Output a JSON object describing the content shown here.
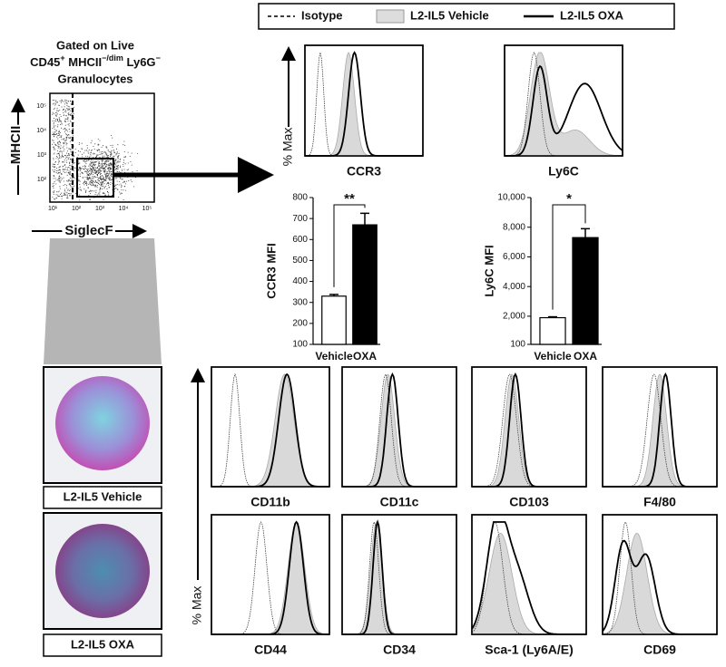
{
  "legend": [
    "Isotype",
    "L2-IL5 Vehicle",
    "L2-IL5 OXA"
  ],
  "gating": {
    "title_line1": "Gated on Live",
    "title_line2": [
      "CD45",
      "+",
      " MHCII",
      "−/dim",
      " Ly6G",
      "−"
    ],
    "title_line3": "Granulocytes",
    "y_label": "MHCII",
    "x_label": "SiglecF",
    "x_tick_labels": [
      "10¹",
      "10²",
      "10³",
      "10⁴",
      "10⁵"
    ],
    "y_tick_labels": [
      "10²",
      "10³",
      "10⁴",
      "10⁵"
    ]
  },
  "histogram_y_label": "% Max",
  "histogram_labels": [
    "CCR3",
    "Ly6C",
    "CD11b",
    "CD11c",
    "CD103",
    "F4/80",
    "CD44",
    "CD34",
    "Sca-1 (Ly6A/E)",
    "CD69"
  ],
  "image_captions": [
    "L2-IL5 Vehicle",
    "L2-IL5 OXA"
  ],
  "chart_data": [
    {
      "type": "bar",
      "y_label": "CCR3 MFI",
      "categories": [
        "Vehicle",
        "OXA"
      ],
      "values": [
        330,
        670
      ],
      "errors": [
        8,
        55
      ],
      "colors": [
        "#ffffff",
        "#000000"
      ],
      "ylim": [
        100,
        800
      ],
      "yticks": [
        100,
        200,
        300,
        400,
        500,
        600,
        700,
        800
      ],
      "significance": "**"
    },
    {
      "type": "bar",
      "y_label": "Ly6C MFI",
      "categories": [
        "Vehicle",
        "OXA"
      ],
      "values": [
        1900,
        7300
      ],
      "errors": [
        60,
        600
      ],
      "colors": [
        "#ffffff",
        "#000000"
      ],
      "ylim": [
        100,
        10000
      ],
      "yticks": [
        100,
        {
          "value": 2000,
          "label": "2,000"
        },
        {
          "value": 4000,
          "label": "4,000"
        },
        {
          "value": 6000,
          "label": "6,000"
        },
        {
          "value": 8000,
          "label": "8,000"
        },
        {
          "value": 10000,
          "label": "10,000"
        }
      ],
      "significance": "*"
    }
  ]
}
